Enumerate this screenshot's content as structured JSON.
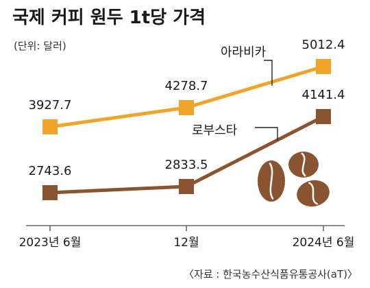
{
  "title": "국제 커피 원두 1t당 가격",
  "unit": "(단위: 달러)",
  "source": "〈자료 : 한국농수산식품유통공사(aT)〉",
  "colors": {
    "arabica": "#F0A42A",
    "robusta": "#8B5430",
    "axis": "#666666",
    "bean_dark": "#8B5430",
    "bean_crease": "#ffffff"
  },
  "chart_data": {
    "type": "line",
    "categories": [
      "2023년 6월",
      "12월",
      "2024년 6월"
    ],
    "series": [
      {
        "name": "아라비카",
        "values": [
          3927.7,
          4278.7,
          5012.4
        ],
        "labels": [
          "3927.7",
          "4278.7",
          "5012.4"
        ],
        "color": "#F0A42A"
      },
      {
        "name": "로부스타",
        "values": [
          2743.6,
          2833.5,
          4141.4
        ],
        "labels": [
          "2743.6",
          "2833.5",
          "4141.4"
        ],
        "color": "#8B5430"
      }
    ],
    "xlabel": "",
    "ylabel": "",
    "grid": false,
    "legend": "inline labels"
  }
}
